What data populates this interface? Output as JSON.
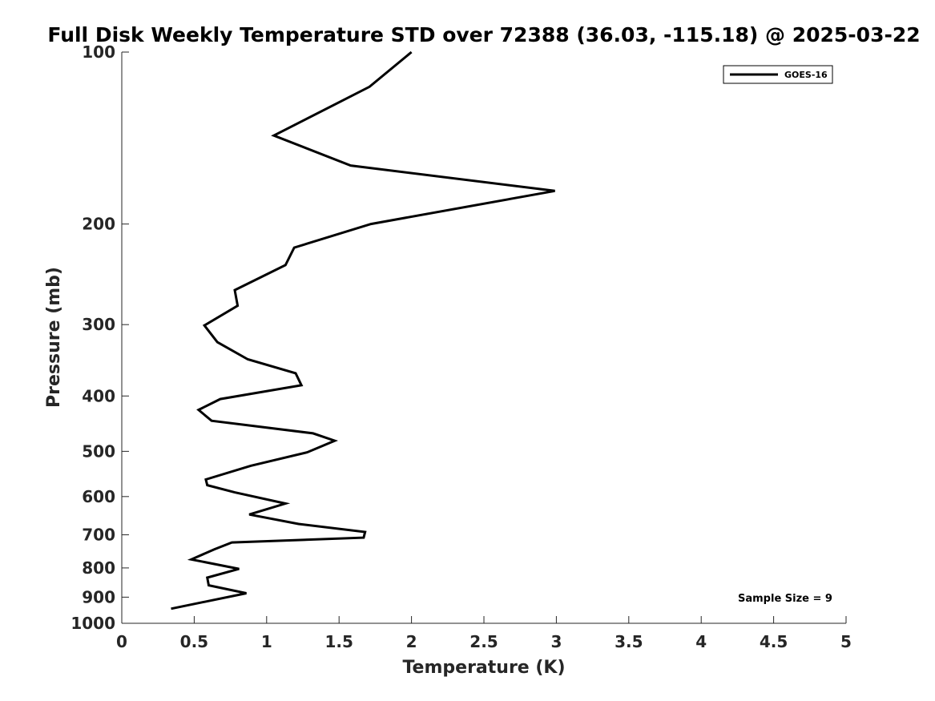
{
  "chart_data": {
    "type": "line",
    "title": "Full Disk Weekly Temperature STD over 72388 (36.03, -115.18) @ 2025-03-22",
    "xlabel": "Temperature (K)",
    "ylabel": "Pressure (mb)",
    "xlim": [
      0,
      5
    ],
    "ylim": [
      100,
      1000
    ],
    "y_scale": "log",
    "y_reversed": true,
    "x_ticks": [
      "0",
      "0.5",
      "1",
      "1.5",
      "2",
      "2.5",
      "3",
      "3.5",
      "4",
      "4.5",
      "5"
    ],
    "y_ticks": [
      {
        "value": 100,
        "label": "100"
      },
      {
        "value": 200,
        "label": "200"
      },
      {
        "value": 300,
        "label": "300"
      },
      {
        "value": 400,
        "label": "400"
      },
      {
        "value": 500,
        "label": "500"
      },
      {
        "value": 600,
        "label": "600"
      },
      {
        "value": 700,
        "label": "700"
      },
      {
        "value": 800,
        "label": "800"
      },
      {
        "value": 900,
        "label": "900"
      },
      {
        "value": 1000,
        "label": "1000"
      }
    ],
    "grid": false,
    "legend_position": "top-right",
    "annotation": "Sample Size = 9",
    "series": [
      {
        "name": "GOES-16",
        "color": "#000000",
        "x": [
          2.0,
          1.71,
          1.05,
          1.58,
          2.99,
          1.72,
          1.19,
          1.13,
          0.78,
          0.8,
          0.57,
          0.66,
          0.87,
          1.2,
          1.24,
          0.68,
          0.53,
          0.62,
          1.32,
          1.47,
          1.28,
          0.89,
          0.58,
          0.59,
          0.78,
          1.13,
          0.88,
          1.22,
          1.68,
          1.67,
          0.76,
          0.64,
          0.48,
          0.81,
          0.59,
          0.6,
          0.86,
          0.34
        ],
        "y": [
          100,
          115,
          140,
          158,
          175,
          200,
          220,
          236,
          261,
          278,
          301,
          322,
          345,
          365,
          383,
          405,
          423,
          442,
          465,
          479,
          502,
          530,
          560,
          573,
          590,
          617,
          645,
          670,
          692,
          708,
          722,
          742,
          773,
          803,
          832,
          858,
          886,
          943
        ]
      }
    ]
  }
}
